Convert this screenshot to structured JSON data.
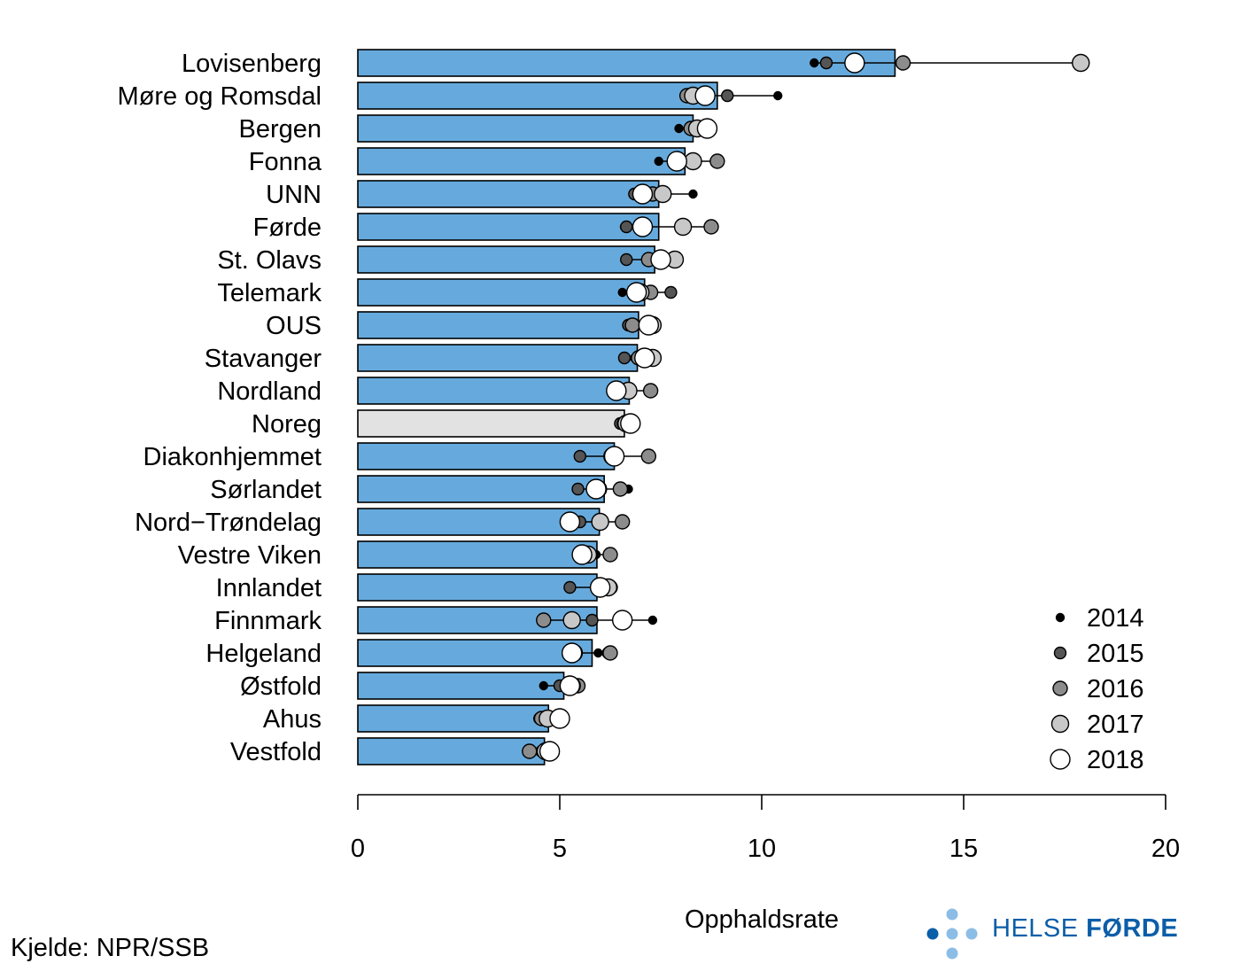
{
  "chart_data": {
    "type": "bar",
    "xlabel": "Opphaldsrate",
    "xlim": [
      0,
      20
    ],
    "xticks": [
      0,
      5,
      10,
      15,
      20
    ],
    "grid": false,
    "legend_position": "bottom-right",
    "legend": [
      "2014",
      "2015",
      "2016",
      "2017",
      "2018"
    ],
    "bar_color": "#66aadd",
    "highlight_category": "Noreg",
    "highlight_color": "#e2e2e2",
    "point_colors": {
      "2014": "#000000",
      "2015": "#555555",
      "2016": "#8c8c8c",
      "2017": "#c8c8c8",
      "2018": "#ffffff"
    },
    "categories": [
      "Lovisenberg",
      "Møre og Romsdal",
      "Bergen",
      "Fonna",
      "UNN",
      "Førde",
      "St. Olavs",
      "Telemark",
      "OUS",
      "Stavanger",
      "Nordland",
      "Noreg",
      "Diakonhjemmet",
      "Sørlandet",
      "Nord−Trøndelag",
      "Vestre Viken",
      "Innlandet",
      "Finnmark",
      "Helgeland",
      "Østfold",
      "Ahus",
      "Vestfold"
    ],
    "bar_values": [
      13.3,
      8.9,
      8.3,
      8.1,
      7.45,
      7.45,
      7.35,
      7.1,
      6.95,
      6.92,
      6.72,
      6.6,
      6.35,
      6.1,
      5.98,
      5.92,
      5.92,
      5.92,
      5.8,
      5.1,
      4.72,
      4.62
    ],
    "series": [
      {
        "name": "2014",
        "values": [
          11.3,
          10.4,
          7.95,
          7.45,
          8.3,
          6.6,
          7.4,
          6.55,
          6.85,
          6.85,
          6.6,
          6.7,
          6.4,
          6.7,
          6.55,
          5.9,
          5.95,
          7.3,
          5.95,
          4.6,
          4.5,
          4.8
        ]
      },
      {
        "name": "2015",
        "values": [
          11.6,
          9.15,
          8.55,
          7.95,
          6.85,
          6.65,
          6.65,
          7.75,
          6.7,
          6.6,
          6.75,
          6.5,
          5.5,
          5.45,
          5.5,
          6.25,
          5.25,
          5.8,
          6.2,
          5.0,
          4.5,
          4.55
        ]
      },
      {
        "name": "2016",
        "values": [
          13.5,
          8.15,
          8.25,
          8.9,
          7.3,
          8.75,
          7.2,
          7.25,
          6.8,
          6.95,
          7.25,
          6.6,
          7.2,
          6.5,
          6.55,
          6.25,
          6.25,
          4.6,
          6.25,
          5.45,
          4.55,
          4.25
        ]
      },
      {
        "name": "2017",
        "values": [
          17.9,
          8.3,
          8.4,
          8.3,
          7.55,
          8.05,
          7.85,
          7.0,
          7.3,
          7.3,
          6.7,
          6.65,
          6.3,
          5.95,
          6.0,
          5.7,
          6.2,
          5.3,
          5.35,
          5.3,
          4.7,
          4.65
        ]
      },
      {
        "name": "2018",
        "values": [
          12.3,
          8.6,
          8.65,
          7.9,
          7.05,
          7.05,
          7.5,
          6.9,
          7.2,
          7.1,
          6.4,
          6.75,
          6.35,
          5.9,
          5.25,
          5.55,
          6.0,
          6.55,
          5.3,
          5.25,
          5.0,
          4.75
        ]
      }
    ]
  },
  "source": "Kjelde: NPR/SSB",
  "logo": {
    "text_light": "HELSE",
    "text_bold": "FØRDE",
    "color": "#0b5ea8"
  }
}
